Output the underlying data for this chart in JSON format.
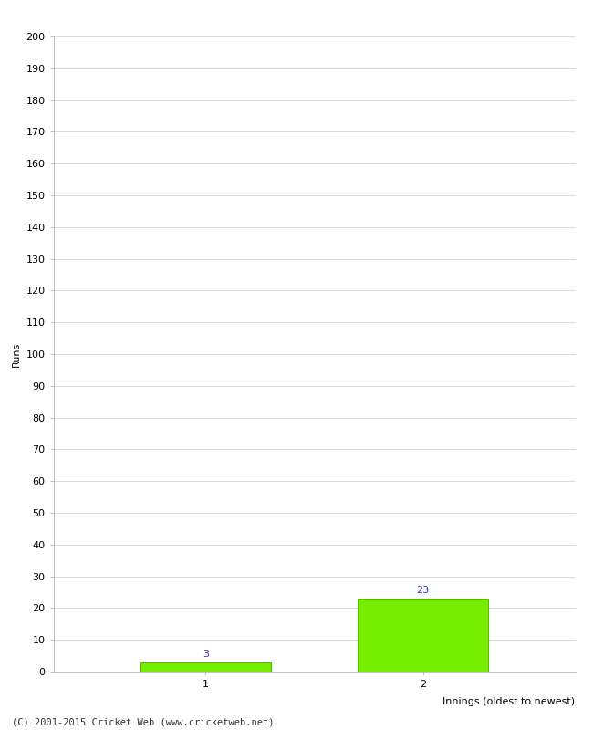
{
  "categories": [
    1,
    2
  ],
  "values": [
    3,
    23
  ],
  "bar_color": "#77ee00",
  "bar_edge_color": "#55bb00",
  "xlabel": "Innings (oldest to newest)",
  "ylabel": "Runs",
  "ylim": [
    0,
    200
  ],
  "ytick_step": 10,
  "background_color": "#ffffff",
  "grid_color": "#cccccc",
  "annotation_color": "#3333cc",
  "footer": "(C) 2001-2015 Cricket Web (www.cricketweb.net)",
  "bar_width": 0.6,
  "xlim": [
    0.3,
    2.7
  ]
}
